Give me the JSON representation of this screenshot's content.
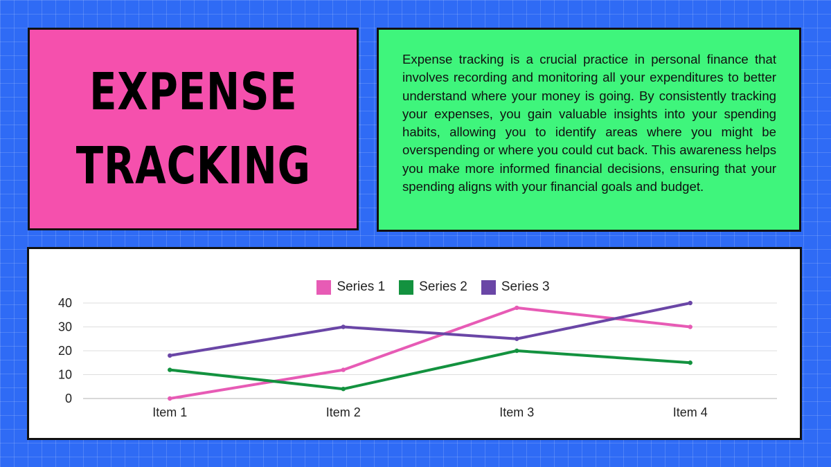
{
  "title": {
    "line1": "EXPENSE",
    "line2": "TRACKING"
  },
  "description": "Expense tracking is a crucial practice in personal finance that involves recording and monitoring all your expenditures to better understand where your money is going. By consistently tracking your expenses, you gain valuable insights into your spending habits, allowing you to identify areas where you might be overspending or where you could cut back. This awareness helps you make more informed financial decisions, ensuring that your spending aligns with your financial goals and budget.",
  "colors": {
    "background": "#2f6bf5",
    "title_panel": "#f550ad",
    "description_panel": "#3ff57c"
  },
  "chart_data": {
    "type": "line",
    "categories": [
      "Item 1",
      "Item 2",
      "Item 3",
      "Item 4"
    ],
    "series": [
      {
        "name": "Series 1",
        "color": "#e75bb5",
        "values": [
          0,
          12,
          38,
          30
        ]
      },
      {
        "name": "Series 2",
        "color": "#13923f",
        "values": [
          12,
          4,
          20,
          15
        ]
      },
      {
        "name": "Series 3",
        "color": "#6a46a6",
        "values": [
          18,
          30,
          25,
          40
        ]
      }
    ],
    "ylim": [
      0,
      40
    ],
    "yticks": [
      0,
      10,
      20,
      30,
      40
    ],
    "legend_position": "top",
    "grid": true
  }
}
